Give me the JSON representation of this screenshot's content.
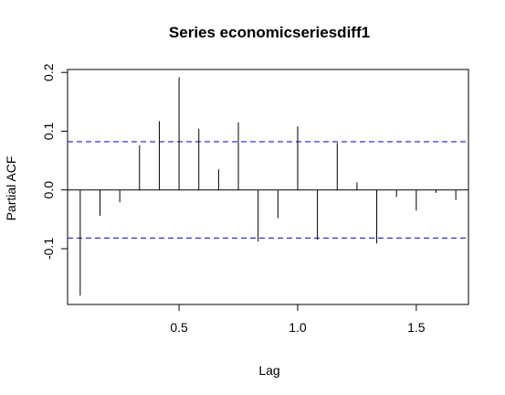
{
  "chart_data": {
    "type": "bar",
    "title": "Series  economicseriesdiff1",
    "xlabel": "Lag",
    "ylabel": "Partial ACF",
    "xlim": [
      0.03,
      1.72
    ],
    "ylim": [
      -0.195,
      0.205
    ],
    "x_ticks": [
      {
        "value": 0.5,
        "label": "0.5"
      },
      {
        "value": 1.0,
        "label": "1.0"
      },
      {
        "value": 1.5,
        "label": "1.5"
      }
    ],
    "y_ticks": [
      {
        "value": -0.1,
        "label": "-0.1"
      },
      {
        "value": 0.0,
        "label": "0.0"
      },
      {
        "value": 0.1,
        "label": "0.1"
      },
      {
        "value": 0.2,
        "label": "0.2"
      }
    ],
    "confidence_bound": 0.082,
    "bound_color": "#3333cc",
    "series": [
      {
        "x": [
          0.0833,
          0.1667,
          0.25,
          0.3333,
          0.4167,
          0.5,
          0.5833,
          0.6667,
          0.75,
          0.8333,
          0.9167,
          1.0,
          1.0833,
          1.1667,
          1.25,
          1.3333,
          1.4167,
          1.5,
          1.5833,
          1.6667
        ],
        "values": [
          -0.18,
          -0.044,
          -0.021,
          0.076,
          0.117,
          0.192,
          0.104,
          0.035,
          0.115,
          -0.088,
          -0.048,
          0.108,
          -0.085,
          0.08,
          0.013,
          -0.091,
          -0.012,
          -0.035,
          -0.005,
          -0.017
        ]
      }
    ]
  }
}
